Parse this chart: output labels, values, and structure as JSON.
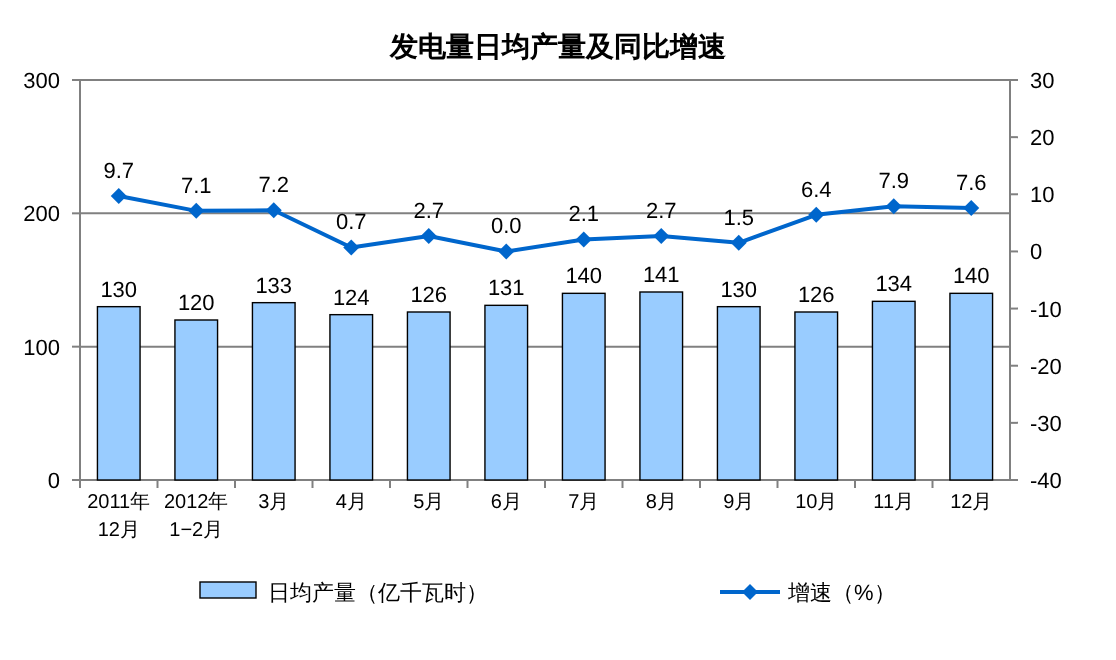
{
  "chart_data": {
    "type": "bar",
    "title": "发电量日均产量及同比增速",
    "categories": [
      "2011年\n12月",
      "2012年\n1−2月",
      "3月",
      "4月",
      "5月",
      "6月",
      "7月",
      "8月",
      "9月",
      "10月",
      "11月",
      "12月"
    ],
    "series": [
      {
        "name": "日均产量（亿千瓦时）",
        "color": "#99ccff",
        "values": [
          130,
          120,
          133,
          124,
          126,
          131,
          140,
          141,
          130,
          126,
          134,
          140
        ]
      },
      {
        "name": "增速（%）",
        "type": "line",
        "axis": "y2",
        "color": "#0066cc",
        "marker": "diamond",
        "values": [
          9.7,
          7.1,
          7.2,
          0.7,
          2.7,
          0.0,
          2.1,
          2.7,
          1.5,
          6.4,
          7.9,
          7.6
        ],
        "value_labels": [
          "9.7",
          "7.1",
          "7.2",
          "0.7",
          "2.7",
          "0.0",
          "2.1",
          "2.7",
          "1.5",
          "6.4",
          "7.9",
          "7.6"
        ]
      }
    ],
    "ylim": [
      0,
      300
    ],
    "yticks": [
      0,
      100,
      200,
      300
    ],
    "y2lim": [
      -40,
      30
    ],
    "y2ticks": [
      -40,
      -30,
      -20,
      -10,
      0,
      10,
      20,
      30
    ],
    "grid": "y",
    "legend": "bottom",
    "data_labels": true
  }
}
